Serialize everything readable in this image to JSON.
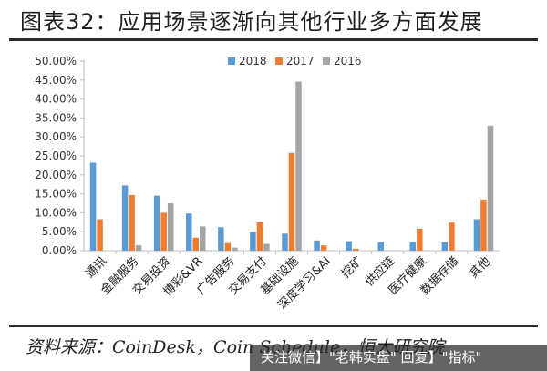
{
  "title": "图表32：应用场景逐渐向其他行业多方面发展",
  "source": "资料来源：CoinDesk，Coin Schedule，恒大研究院",
  "watermark": "关注微信】\"老韩实盘\" 回复】\"指标\"",
  "colors": {
    "2018": "#5b9bd5",
    "2017": "#ed7d31",
    "2016": "#a5a5a5"
  },
  "chart_data": {
    "type": "bar",
    "categories": [
      "通讯",
      "金融服务",
      "交易投资",
      "博彩&VR",
      "广告服务",
      "交易支付",
      "基础设施",
      "深度学习&AI",
      "挖矿",
      "供应链",
      "医疗健康",
      "数据存储",
      "其他"
    ],
    "series": [
      {
        "name": "2018",
        "values": [
          23.2,
          17.2,
          14.5,
          9.8,
          6.2,
          5.0,
          4.5,
          2.7,
          2.5,
          2.2,
          2.2,
          2.2,
          8.3
        ]
      },
      {
        "name": "2017",
        "values": [
          8.3,
          14.7,
          10.0,
          3.4,
          2.0,
          7.5,
          25.8,
          1.4,
          0.5,
          0.0,
          5.8,
          7.4,
          13.5
        ]
      },
      {
        "name": "2016",
        "values": [
          0.0,
          1.4,
          12.5,
          6.4,
          0.8,
          1.8,
          44.6,
          0.0,
          0.0,
          0.0,
          0.0,
          0.0,
          33.0
        ]
      }
    ],
    "yticks": [
      "0.00%",
      "5.00%",
      "10.00%",
      "15.00%",
      "20.00%",
      "25.00%",
      "30.00%",
      "35.00%",
      "40.00%",
      "45.00%",
      "50.00%"
    ],
    "ylim": [
      0,
      50
    ],
    "legend": "top-center",
    "grid": false
  }
}
